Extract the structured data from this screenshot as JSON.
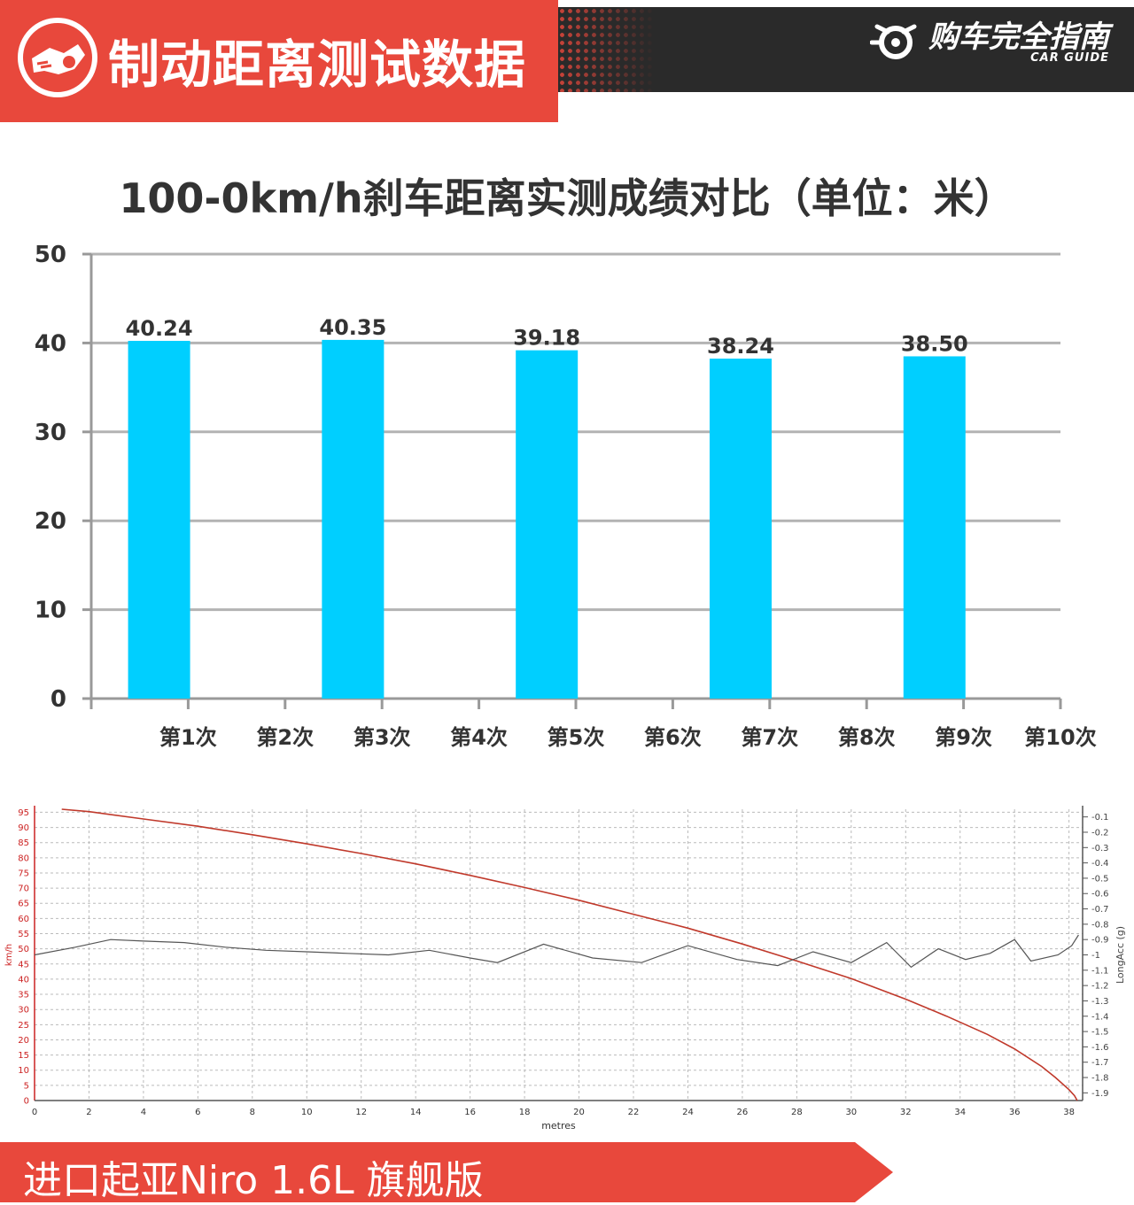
{
  "header": {
    "title": "制动距离测试数据",
    "brand_cn": "购车完全指南",
    "brand_en": "CAR GUIDE",
    "icon": "brake-car-icon",
    "accent_color": "#e8483c",
    "dark_color": "#2a2a2a"
  },
  "chart_data": [
    {
      "type": "bar",
      "title": "100-0km/h刹车距离实测成绩对比（单位：米）",
      "categories": [
        "第1次",
        "第2次",
        "第3次",
        "第4次",
        "第5次",
        "第6次",
        "第7次",
        "第8次",
        "第9次",
        "第10次"
      ],
      "values": [
        40.24,
        null,
        40.35,
        null,
        39.18,
        null,
        38.24,
        null,
        38.5,
        null
      ],
      "labels": [
        "40.24",
        "",
        "40.35",
        "",
        "39.18",
        "",
        "38.24",
        "",
        "38.50",
        ""
      ],
      "ylim": [
        0,
        50
      ],
      "yticks": [
        0,
        10,
        20,
        30,
        40,
        50
      ],
      "grid": true,
      "bar_color": "#00cfff"
    },
    {
      "type": "line",
      "xlabel": "metres",
      "ylabel_left": "km/h",
      "ylabel_right": "LongAcc (g)",
      "xlim": [
        0,
        38.5
      ],
      "xticks": [
        0,
        2,
        4,
        6,
        8,
        10,
        12,
        14,
        16,
        18,
        20,
        22,
        24,
        26,
        28,
        30,
        32,
        34,
        36,
        38
      ],
      "ylim_left": [
        0,
        96
      ],
      "yticks_left": [
        0,
        5,
        10,
        15,
        20,
        25,
        30,
        35,
        40,
        45,
        50,
        55,
        60,
        65,
        70,
        75,
        80,
        85,
        90,
        95
      ],
      "ylim_right": [
        -1.95,
        -0.05
      ],
      "yticks_right": [
        -0.1,
        -0.2,
        -0.3,
        -0.4,
        -0.5,
        -0.6,
        -0.7,
        -0.8,
        -0.9,
        -1,
        -1.1,
        -1.2,
        -1.3,
        -1.4,
        -1.5,
        -1.6,
        -1.7,
        -1.8,
        -1.9
      ],
      "series": [
        {
          "axis": "left",
          "color": "#c0392b",
          "x": [
            1.0,
            2,
            4,
            6,
            8,
            10,
            12,
            14,
            16,
            18,
            20,
            22,
            24,
            26,
            28,
            30,
            32,
            33.5,
            35,
            36,
            37,
            37.5,
            38,
            38.2,
            38.3
          ],
          "y": [
            96,
            95.2,
            92.8,
            90.4,
            87.6,
            84.6,
            81.4,
            78.0,
            74.2,
            70.2,
            66.0,
            61.4,
            56.8,
            51.6,
            46.0,
            40.2,
            33.4,
            27.8,
            21.8,
            17.0,
            11.2,
            7.6,
            3.6,
            1.6,
            0
          ]
        },
        {
          "axis": "right",
          "color": "#555555",
          "x": [
            0,
            1.5,
            2.8,
            4,
            5.5,
            7,
            8.5,
            10,
            11.5,
            13,
            14.5,
            16,
            17,
            18.7,
            20.5,
            22.3,
            24,
            25.8,
            27.3,
            28.6,
            30,
            31.3,
            32.2,
            33.2,
            34.2,
            35.1,
            36,
            36.6,
            37.6,
            38.1,
            38.35
          ],
          "y": [
            -1.0,
            -0.95,
            -0.9,
            -0.91,
            -0.92,
            -0.95,
            -0.97,
            -0.98,
            -0.99,
            -1.0,
            -0.97,
            -1.02,
            -1.05,
            -0.93,
            -1.02,
            -1.05,
            -0.94,
            -1.03,
            -1.07,
            -0.98,
            -1.05,
            -0.92,
            -1.08,
            -0.96,
            -1.03,
            -0.99,
            -0.9,
            -1.04,
            -1.0,
            -0.94,
            -0.87
          ]
        }
      ]
    }
  ],
  "footer": {
    "text": "进口起亚Niro 1.6L 旗舰版"
  }
}
